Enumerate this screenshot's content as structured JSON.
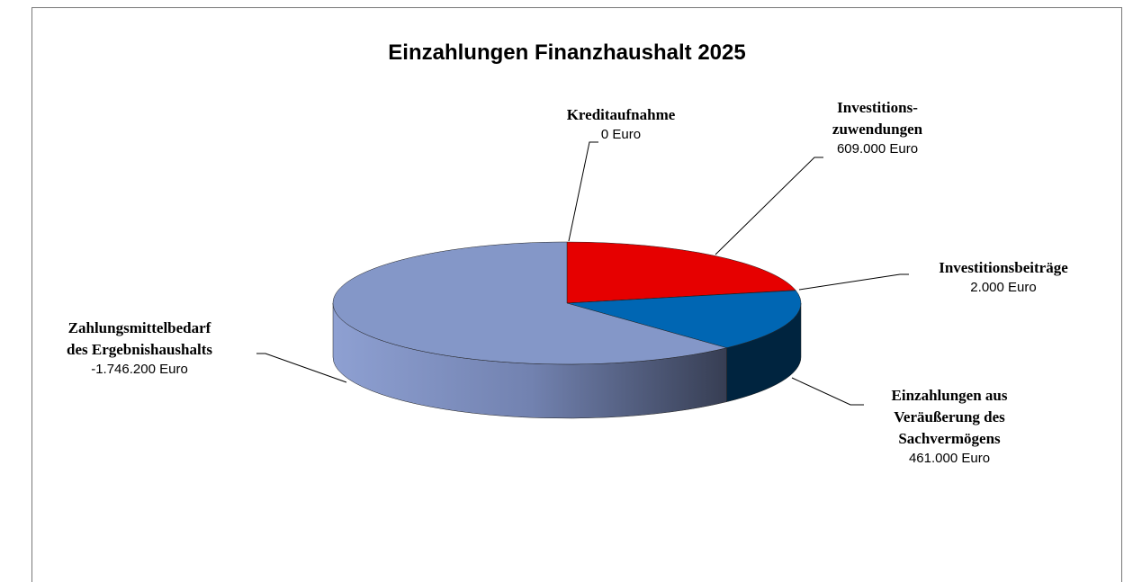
{
  "chart_data": {
    "type": "pie",
    "title": "Einzahlungen Finanzhaushalt 2025",
    "categories": [
      "Kreditaufnahme",
      "Investitions-\nzuwendungen",
      "Investitionsbeiträge",
      "Einzahlungen aus\nVeräußerung des\nSachvermögens",
      "Zahlungsmittelbedarf\ndes Ergebnishaushalts"
    ],
    "values": [
      0,
      609000,
      2000,
      461000,
      -1746200
    ],
    "value_labels": [
      "0 Euro",
      "609.000 Euro",
      "2.000 Euro",
      "461.000 Euro",
      "-1.746.200 Euro"
    ],
    "colors": [
      "#c0c0c0",
      "#e60000",
      "#1f4e9c",
      "#0066b3",
      "#8497c8"
    ]
  }
}
